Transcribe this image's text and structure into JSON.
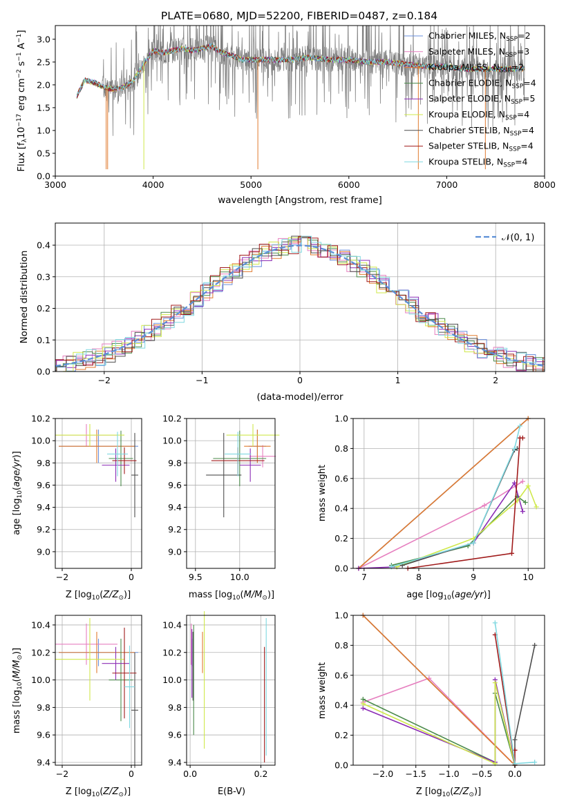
{
  "title": "PLATE=0680, MJD=52200, FIBERID=0487, z=0.184",
  "colors": {
    "Chabrier MILES": "#6a8fdc",
    "Salpeter MILES": "#e67fbf",
    "Kroupa MILES": "#e07a2e",
    "Chabrier ELODIE": "#4a8a4a",
    "Salpeter ELODIE": "#8b2bb5",
    "Kroupa ELODIE": "#cfe84a",
    "Chabrier STELIB": "#4d4d4d",
    "Salpeter STELIB": "#a01a1a",
    "Kroupa STELIB": "#7fd8e0",
    "data": "#808080"
  },
  "chart_data": [
    {
      "type": "line",
      "panel": "spectrum",
      "title": "PLATE=0680, MJD=52200, FIBERID=0487, z=0.184",
      "xlabel": "wavelength [Angstrom, rest frame]",
      "ylabel_parts": [
        "Flux [f",
        "λ",
        "10",
        "−17",
        " erg cm",
        "−2",
        " s",
        "−1",
        " A",
        "−1",
        "]"
      ],
      "xlim": [
        3000,
        8000
      ],
      "ylim": [
        0,
        3.3
      ],
      "xticks": [
        3000,
        4000,
        5000,
        6000,
        7000,
        8000
      ],
      "yticks": [
        0.0,
        0.5,
        1.0,
        1.5,
        2.0,
        2.5,
        3.0
      ],
      "legend_position": "upper right",
      "legend": [
        {
          "base": "Chabrier MILES, N",
          "sub": "SSP",
          "tail": "=2"
        },
        {
          "base": "Salpeter MILES, N",
          "sub": "SSP",
          "tail": "=3"
        },
        {
          "base": "Kroupa MILES, N",
          "sub": "SSP",
          "tail": "=2"
        },
        {
          "base": "Chabrier ELODIE, N",
          "sub": "SSP",
          "tail": "=4"
        },
        {
          "base": "Salpeter ELODIE, N",
          "sub": "SSP",
          "tail": "=5"
        },
        {
          "base": "Kroupa ELODIE, N",
          "sub": "SSP",
          "tail": "=4"
        },
        {
          "base": "Chabrier STELIB, N",
          "sub": "SSP",
          "tail": "=4"
        },
        {
          "base": "Salpeter STELIB, N",
          "sub": "SSP",
          "tail": "=4"
        },
        {
          "base": "Kroupa STELIB, N",
          "sub": "SSP",
          "tail": "=4"
        }
      ],
      "model_continuum": {
        "wavelength": [
          3220,
          3300,
          3400,
          3500,
          3600,
          3700,
          3800,
          3900,
          4000,
          4100,
          4200,
          4300,
          4400,
          4500,
          4600,
          4700,
          4800,
          4900,
          5000,
          5200,
          5400,
          5600,
          5800,
          6000,
          6200,
          6400,
          6600,
          6800,
          7000,
          7200,
          7400,
          7600,
          7800
        ],
        "flux": [
          1.75,
          2.1,
          2.05,
          1.95,
          1.9,
          1.95,
          2.1,
          2.45,
          2.75,
          2.7,
          2.75,
          2.8,
          2.75,
          2.8,
          2.85,
          2.7,
          2.65,
          2.55,
          2.55,
          2.55,
          2.55,
          2.6,
          2.55,
          2.55,
          2.5,
          2.5,
          2.45,
          2.4,
          2.4,
          2.35,
          2.35,
          2.35,
          2.35
        ]
      }
    },
    {
      "type": "line",
      "panel": "residuals",
      "xlabel": "(data-model)/error",
      "ylabel": "Normed distribution",
      "xlim": [
        -2.5,
        2.5
      ],
      "ylim": [
        0,
        0.47
      ],
      "xticks": [
        -2,
        -1,
        0,
        1,
        2
      ],
      "yticks": [
        0.0,
        0.1,
        0.2,
        0.3,
        0.4
      ],
      "legend_text": "𝒩(0, 1)",
      "legend_position": "upper right",
      "histogram_bin_width": 0.1
    },
    {
      "type": "scatter",
      "panel": "age-vs-Z",
      "xlabel": "Z [log10(Z/Z⊙)]",
      "ylabel": "age  [log10(age/yr)]",
      "xlim": [
        -2.2,
        0.3
      ],
      "ylim": [
        8.85,
        10.2
      ],
      "xtick_labels": [
        "−2",
        "0"
      ],
      "xticks": [
        -2,
        0
      ],
      "yticks": [
        9.0,
        9.2,
        9.4,
        9.6,
        9.8,
        10.0,
        10.2
      ],
      "errorbars": [
        {
          "model": "Chabrier MILES",
          "x": -0.95,
          "xerr": 1.15,
          "y": 9.95,
          "yerr": 0.15
        },
        {
          "model": "Salpeter MILES",
          "x": -1.3,
          "xerr": 0.9,
          "y": 10.05,
          "yerr": 0.1
        },
        {
          "model": "Kroupa MILES",
          "x": -1.0,
          "xerr": 1.1,
          "y": 9.95,
          "yerr": 0.15
        },
        {
          "model": "Chabrier ELODIE",
          "x": -0.3,
          "xerr": 0.35,
          "y": 9.84,
          "yerr": 0.25
        },
        {
          "model": "Salpeter ELODIE",
          "x": -0.45,
          "xerr": 0.4,
          "y": 9.78,
          "yerr": 0.15
        },
        {
          "model": "Kroupa ELODIE",
          "x": -1.2,
          "xerr": 1.0,
          "y": 10.05,
          "yerr": 0.1
        },
        {
          "model": "Chabrier STELIB",
          "x": 0.1,
          "xerr": 0.1,
          "y": 9.69,
          "yerr": 0.38
        },
        {
          "model": "Salpeter STELIB",
          "x": -0.2,
          "xerr": 0.35,
          "y": 9.82,
          "yerr": 0.12
        },
        {
          "model": "Kroupa STELIB",
          "x": -0.4,
          "xerr": 0.3,
          "y": 9.88,
          "yerr": 0.2
        }
      ]
    },
    {
      "type": "scatter",
      "panel": "age-vs-mass",
      "xlabel": "mass [log10(M/M⊙)]",
      "xlim": [
        9.4,
        10.4
      ],
      "ylim": [
        8.85,
        10.2
      ],
      "xticks": [
        9.5,
        10.0
      ],
      "xtick_labels": [
        "9.5",
        "10.0"
      ],
      "yticks": [
        9.0,
        9.2,
        9.4,
        9.6,
        9.8,
        10.0,
        10.2
      ],
      "errorbars": [
        {
          "model": "Chabrier MILES",
          "x": 10.2,
          "xerr": 0.1,
          "y": 9.95,
          "yerr": 0.15
        },
        {
          "model": "Salpeter MILES",
          "x": 10.26,
          "xerr": 0.15,
          "y": 9.86,
          "yerr": 0.1
        },
        {
          "model": "Kroupa MILES",
          "x": 10.2,
          "xerr": 0.15,
          "y": 9.95,
          "yerr": 0.15
        },
        {
          "model": "Chabrier ELODIE",
          "x": 10.0,
          "xerr": 0.3,
          "y": 9.84,
          "yerr": 0.25
        },
        {
          "model": "Salpeter ELODIE",
          "x": 10.12,
          "xerr": 0.12,
          "y": 9.78,
          "yerr": 0.15
        },
        {
          "model": "Kroupa ELODIE",
          "x": 10.15,
          "xerr": 0.3,
          "y": 10.05,
          "yerr": 0.1
        },
        {
          "model": "Chabrier STELIB",
          "x": 9.82,
          "xerr": 0.2,
          "y": 9.69,
          "yerr": 0.38
        },
        {
          "model": "Salpeter STELIB",
          "x": 9.98,
          "xerr": 0.3,
          "y": 9.82,
          "yerr": 0.12
        },
        {
          "model": "Kroupa STELIB",
          "x": 9.98,
          "xerr": 0.15,
          "y": 9.88,
          "yerr": 0.2
        }
      ]
    },
    {
      "type": "line",
      "panel": "mass-weight-vs-age",
      "xlabel": "age  [log10(age/yr)]",
      "ylabel": "mass weight",
      "xlim": [
        6.8,
        10.3
      ],
      "ylim": [
        0,
        1.0
      ],
      "xticks": [
        7,
        8,
        9,
        10
      ],
      "yticks": [
        0.0,
        0.2,
        0.4,
        0.6,
        0.8,
        1.0
      ],
      "series": [
        {
          "model": "Chabrier MILES",
          "x": [
            6.9,
            10.0
          ],
          "y": [
            0.0,
            1.0
          ]
        },
        {
          "model": "Salpeter MILES",
          "x": [
            6.9,
            9.2,
            9.9
          ],
          "y": [
            0.0,
            0.42,
            0.58
          ]
        },
        {
          "model": "Kroupa MILES",
          "x": [
            6.9,
            10.0
          ],
          "y": [
            0.0,
            1.0
          ]
        },
        {
          "model": "Chabrier ELODIE",
          "x": [
            7.5,
            8.9,
            9.8,
            9.95
          ],
          "y": [
            0.02,
            0.15,
            0.48,
            0.44
          ]
        },
        {
          "model": "Salpeter ELODIE",
          "x": [
            6.9,
            7.6,
            9.0,
            9.75,
            9.9
          ],
          "y": [
            0.0,
            0.01,
            0.17,
            0.57,
            0.38
          ]
        },
        {
          "model": "Kroupa ELODIE",
          "x": [
            7.6,
            9.0,
            9.8,
            10.0,
            10.15
          ],
          "y": [
            0.01,
            0.2,
            0.45,
            0.55,
            0.41
          ]
        },
        {
          "model": "Chabrier STELIB",
          "x": [
            7.7,
            9.0,
            9.75,
            9.8
          ],
          "y": [
            0.02,
            0.17,
            0.79,
            0.8
          ]
        },
        {
          "model": "Salpeter STELIB",
          "x": [
            7.8,
            9.7,
            9.85,
            9.9
          ],
          "y": [
            0.0,
            0.1,
            0.87,
            0.87
          ]
        },
        {
          "model": "Kroupa STELIB",
          "x": [
            7.5,
            9.0,
            9.75,
            9.85
          ],
          "y": [
            0.01,
            0.17,
            0.8,
            0.95
          ]
        }
      ]
    },
    {
      "type": "scatter",
      "panel": "mass-vs-Z",
      "xlabel": "Z [log10(Z/Z⊙)]",
      "ylabel": "mass [log10(M/M⊙)]",
      "xlim": [
        -2.2,
        0.3
      ],
      "ylim": [
        9.38,
        10.47
      ],
      "xticks": [
        -2,
        0
      ],
      "xtick_labels": [
        "−2",
        "0"
      ],
      "yticks": [
        9.4,
        9.6,
        9.8,
        10.0,
        10.2,
        10.4
      ],
      "errorbars": [
        {
          "model": "Chabrier MILES",
          "x": -0.95,
          "xerr": 1.15,
          "y": 10.2,
          "yerr": 0.1
        },
        {
          "model": "Salpeter MILES",
          "x": -1.3,
          "xerr": 0.9,
          "y": 10.26,
          "yerr": 0.15
        },
        {
          "model": "Kroupa MILES",
          "x": -1.0,
          "xerr": 1.1,
          "y": 10.2,
          "yerr": 0.15
        },
        {
          "model": "Chabrier ELODIE",
          "x": -0.3,
          "xerr": 0.35,
          "y": 10.0,
          "yerr": 0.3
        },
        {
          "model": "Salpeter ELODIE",
          "x": -0.45,
          "xerr": 0.4,
          "y": 10.12,
          "yerr": 0.12
        },
        {
          "model": "Kroupa ELODIE",
          "x": -1.2,
          "xerr": 1.0,
          "y": 10.15,
          "yerr": 0.3
        },
        {
          "model": "Chabrier STELIB",
          "x": 0.1,
          "xerr": 0.1,
          "y": 9.78,
          "yerr": 0.42
        },
        {
          "model": "Salpeter STELIB",
          "x": -0.2,
          "xerr": 0.35,
          "y": 10.05,
          "yerr": 0.33
        },
        {
          "model": "Kroupa STELIB",
          "x": -0.05,
          "xerr": 0.15,
          "y": 9.95,
          "yerr": 0.3
        }
      ]
    },
    {
      "type": "scatter",
      "panel": "mass-vs-EBV",
      "xlabel": "E(B-V)",
      "xlim": [
        -0.01,
        0.24
      ],
      "ylim": [
        9.38,
        10.47
      ],
      "xticks": [
        0.0,
        0.2
      ],
      "xtick_labels": [
        "0.0",
        "0.2"
      ],
      "yticks": [
        9.4,
        9.6,
        9.8,
        10.0,
        10.2,
        10.4
      ],
      "errorbars": [
        {
          "model": "Chabrier MILES",
          "x": 0.005,
          "y": 10.2,
          "yerr": 0.1
        },
        {
          "model": "Salpeter MILES",
          "x": 0.003,
          "y": 10.26,
          "yerr": 0.15
        },
        {
          "model": "Kroupa MILES",
          "x": 0.035,
          "y": 10.2,
          "yerr": 0.15
        },
        {
          "model": "Chabrier ELODIE",
          "x": 0.01,
          "y": 10.0,
          "yerr": 0.4
        },
        {
          "model": "Salpeter ELODIE",
          "x": 0.005,
          "y": 10.12,
          "yerr": 0.25
        },
        {
          "model": "Kroupa ELODIE",
          "x": 0.04,
          "y": 10.0,
          "yerr": 0.5
        },
        {
          "model": "Chabrier STELIB",
          "x": 0.008,
          "y": 10.1,
          "yerr": 0.25
        },
        {
          "model": "Salpeter STELIB",
          "x": 0.21,
          "y": 9.82,
          "yerr": 0.42
        },
        {
          "model": "Kroupa STELIB",
          "x": 0.215,
          "y": 9.95,
          "yerr": 0.5
        }
      ]
    },
    {
      "type": "line",
      "panel": "mass-weight-vs-Z",
      "xlabel": "Z [log10(Z/Z⊙)]",
      "ylabel": "mass weight",
      "xlim": [
        -2.45,
        0.45
      ],
      "ylim": [
        0,
        1.0
      ],
      "xticks": [
        -2.0,
        -1.5,
        -1.0,
        -0.5,
        0.0
      ],
      "xtick_labels": [
        "−2.0",
        "−1.5",
        "−1.0",
        "−0.5",
        "0.0"
      ],
      "yticks": [
        0.0,
        0.2,
        0.4,
        0.6,
        0.8,
        1.0
      ],
      "series": [
        {
          "model": "Chabrier MILES",
          "x": [
            -2.3,
            0.0
          ],
          "y": [
            1.0,
            0.0
          ]
        },
        {
          "model": "Salpeter MILES",
          "x": [
            -2.3,
            -1.3,
            0.0
          ],
          "y": [
            0.42,
            0.58,
            0.0
          ]
        },
        {
          "model": "Kroupa MILES",
          "x": [
            -2.3,
            0.0
          ],
          "y": [
            1.0,
            0.0
          ]
        },
        {
          "model": "Chabrier ELODIE",
          "x": [
            -2.3,
            -0.3,
            -0.3,
            0.0
          ],
          "y": [
            0.44,
            0.02,
            0.48,
            0.0
          ]
        },
        {
          "model": "Salpeter ELODIE",
          "x": [
            -2.3,
            -0.3,
            -0.3,
            0.0
          ],
          "y": [
            0.38,
            0.02,
            0.57,
            0.0
          ]
        },
        {
          "model": "Kroupa ELODIE",
          "x": [
            -2.3,
            -0.3,
            -0.3,
            0.0
          ],
          "y": [
            0.41,
            0.01,
            0.55,
            0.0
          ]
        },
        {
          "model": "Chabrier STELIB",
          "x": [
            0.0,
            0.0,
            0.3
          ],
          "y": [
            0.1,
            0.17,
            0.8
          ]
        },
        {
          "model": "Salpeter STELIB",
          "x": [
            -0.3,
            0.0,
            0.0
          ],
          "y": [
            0.87,
            0.0,
            0.1
          ]
        },
        {
          "model": "Kroupa STELIB",
          "x": [
            -0.3,
            0.0,
            0.3
          ],
          "y": [
            0.95,
            0.01,
            0.02
          ]
        }
      ]
    }
  ]
}
